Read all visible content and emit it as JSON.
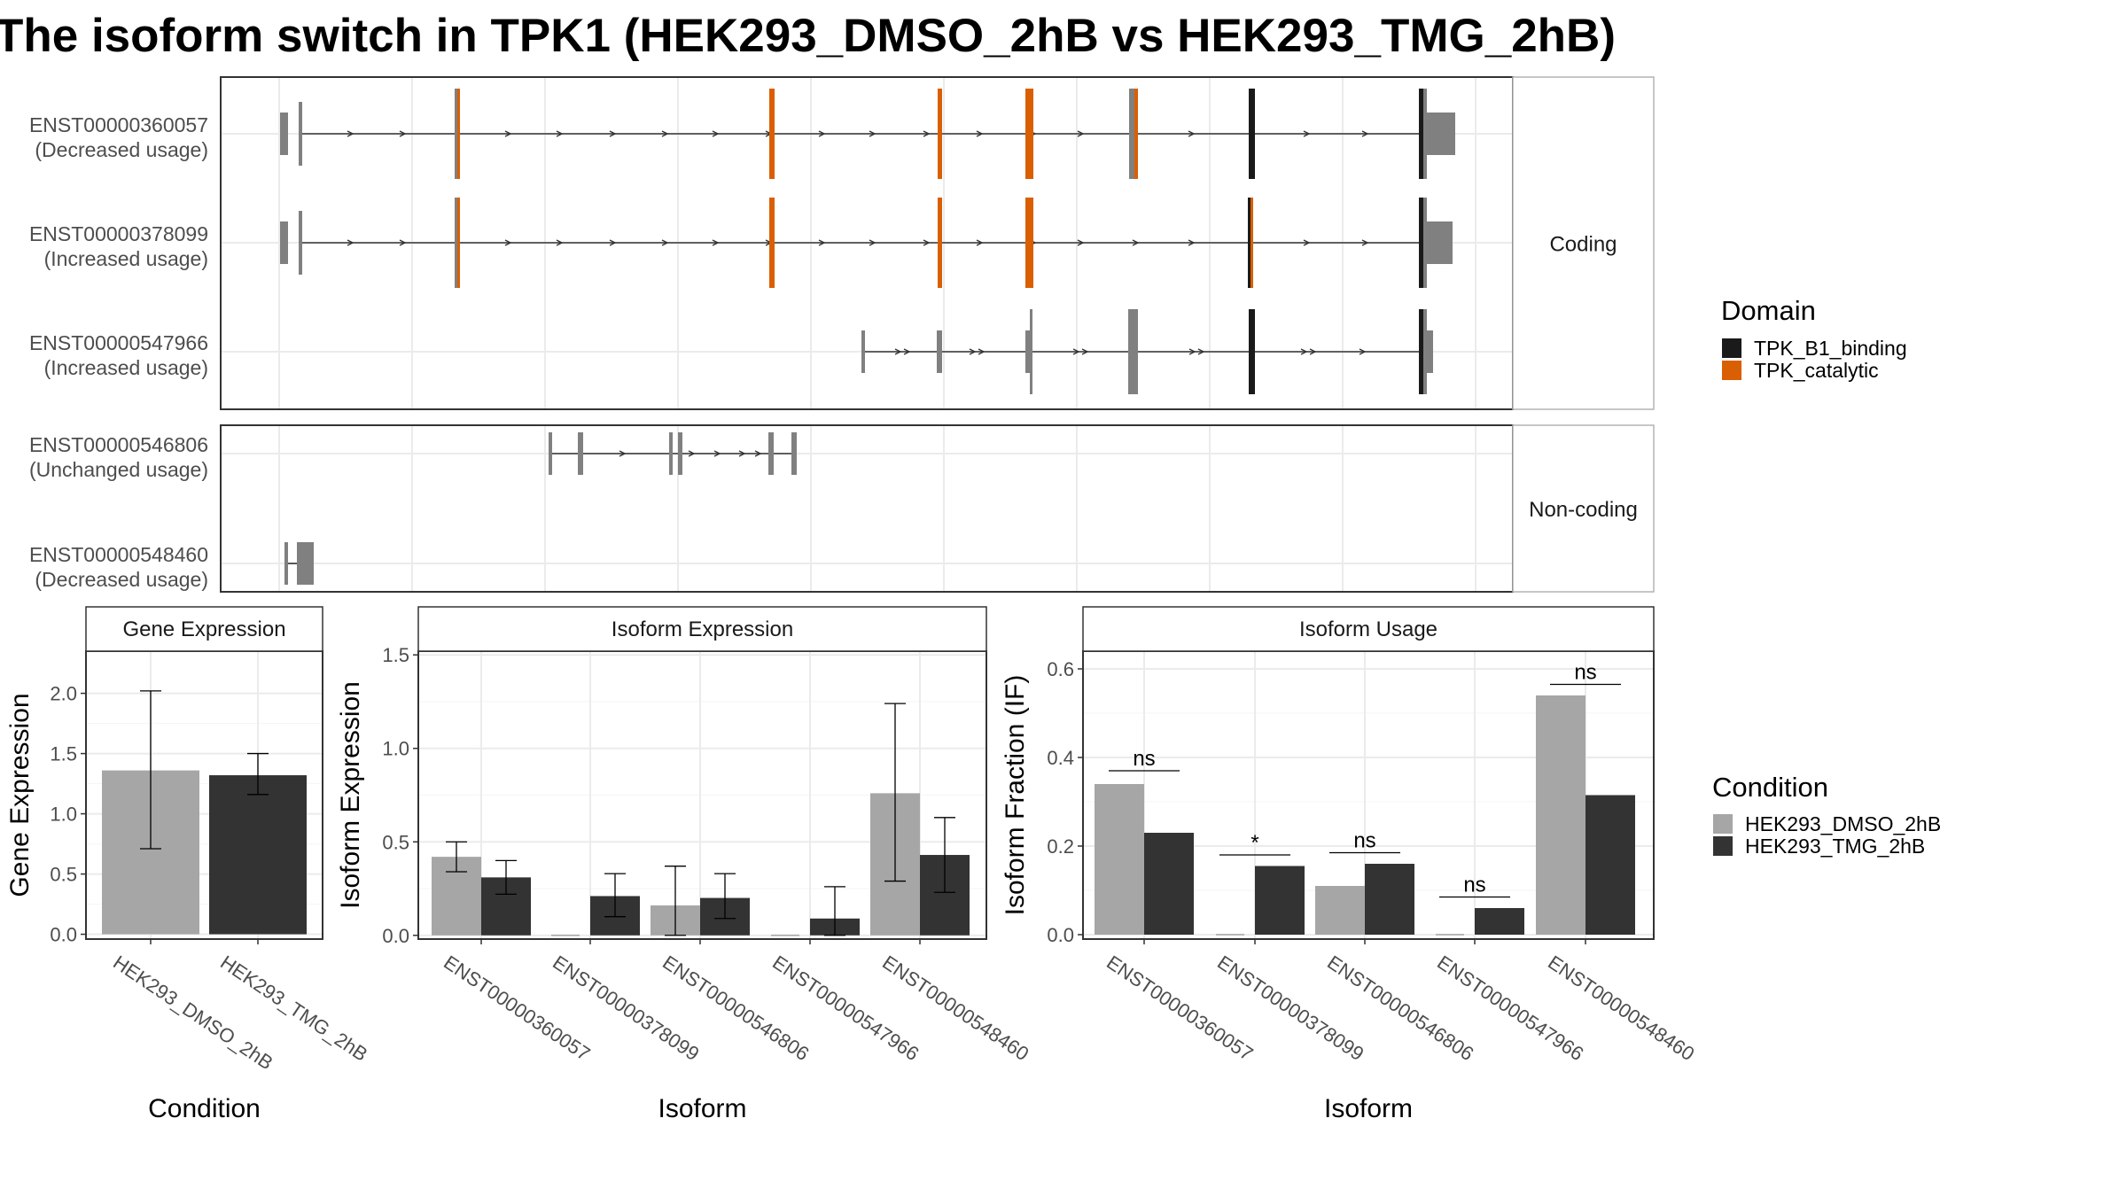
{
  "title": "The isoform switch in TPK1 (HEK293_DMSO_2hB vs HEK293_TMG_2hB)",
  "colors": {
    "domain_TPK_B1_binding": "#1a1a1a",
    "domain_TPK_catalytic": "#d95f02",
    "exon": "#808080",
    "condition_DMSO": "#a6a6a6",
    "condition_TMG": "#333333",
    "panel_border": "#333333",
    "grid": "#ebebeb"
  },
  "chart_data": [
    {
      "type": "gene-structure",
      "panels": [
        {
          "strip": "Coding",
          "transcripts": [
            {
              "id": "ENST00000360057",
              "usage": "(Decreased usage)"
            },
            {
              "id": "ENST00000378099",
              "usage": "(Increased usage)"
            },
            {
              "id": "ENST00000547966",
              "usage": "(Increased usage)"
            }
          ]
        },
        {
          "strip": "Non-coding",
          "transcripts": [
            {
              "id": "ENST00000546806",
              "usage": "(Unchanged usage)"
            },
            {
              "id": "ENST00000548460",
              "usage": "(Decreased usage)"
            }
          ]
        }
      ],
      "legend": {
        "title": "Domain",
        "entries": [
          {
            "label": "TPK_B1_binding",
            "color": "#1a1a1a"
          },
          {
            "label": "TPK_catalytic",
            "color": "#d95f02"
          }
        ]
      }
    },
    {
      "type": "bar",
      "strip": "Gene Expression",
      "xlabel": "Condition",
      "ylabel": "Gene Expression",
      "ylim": [
        -0.04,
        2.35
      ],
      "yticks": [
        "0.0",
        "0.5",
        "1.0",
        "1.5",
        "2.0"
      ],
      "categories": [
        "HEK293_DMSO_2hB",
        "HEK293_TMG_2hB"
      ],
      "values": [
        1.36,
        1.32
      ],
      "errors": [
        [
          0.71,
          2.02
        ],
        [
          1.16,
          1.5
        ]
      ]
    },
    {
      "type": "bar",
      "strip": "Isoform Expression",
      "xlabel": "Isoform",
      "ylabel": "Isoform Expression",
      "ylim": [
        -0.02,
        1.52
      ],
      "yticks": [
        "0.0",
        "0.5",
        "1.0",
        "1.5"
      ],
      "categories": [
        "ENST00000360057",
        "ENST00000378099",
        "ENST00000546806",
        "ENST00000547966",
        "ENST00000548460"
      ],
      "series": [
        {
          "name": "HEK293_DMSO_2hB",
          "values": [
            0.42,
            0.0,
            0.16,
            0.0,
            0.76
          ],
          "errors": [
            [
              0.34,
              0.5
            ],
            null,
            [
              0.0,
              0.37
            ],
            null,
            [
              0.29,
              1.24
            ]
          ]
        },
        {
          "name": "HEK293_TMG_2hB",
          "values": [
            0.31,
            0.21,
            0.2,
            0.09,
            0.43
          ],
          "errors": [
            [
              0.22,
              0.4
            ],
            [
              0.1,
              0.33
            ],
            [
              0.09,
              0.33
            ],
            [
              0.0,
              0.26
            ],
            [
              0.23,
              0.63
            ]
          ]
        }
      ]
    },
    {
      "type": "bar",
      "strip": "Isoform Usage",
      "xlabel": "Isoform",
      "ylabel": "Isoform Fraction (IF)",
      "ylim": [
        -0.01,
        0.64
      ],
      "yticks": [
        "0.0",
        "0.2",
        "0.4",
        "0.6"
      ],
      "categories": [
        "ENST00000360057",
        "ENST00000378099",
        "ENST00000546806",
        "ENST00000547966",
        "ENST00000548460"
      ],
      "series": [
        {
          "name": "HEK293_DMSO_2hB",
          "values": [
            0.34,
            0.0,
            0.11,
            0.0,
            0.54
          ]
        },
        {
          "name": "HEK293_TMG_2hB",
          "values": [
            0.23,
            0.155,
            0.16,
            0.06,
            0.315
          ]
        }
      ],
      "significance": [
        "ns",
        "*",
        "ns",
        "ns",
        "ns"
      ],
      "legend": {
        "title": "Condition",
        "entries": [
          {
            "label": "HEK293_DMSO_2hB",
            "color": "#a6a6a6"
          },
          {
            "label": "HEK293_TMG_2hB",
            "color": "#333333"
          }
        ]
      }
    }
  ]
}
